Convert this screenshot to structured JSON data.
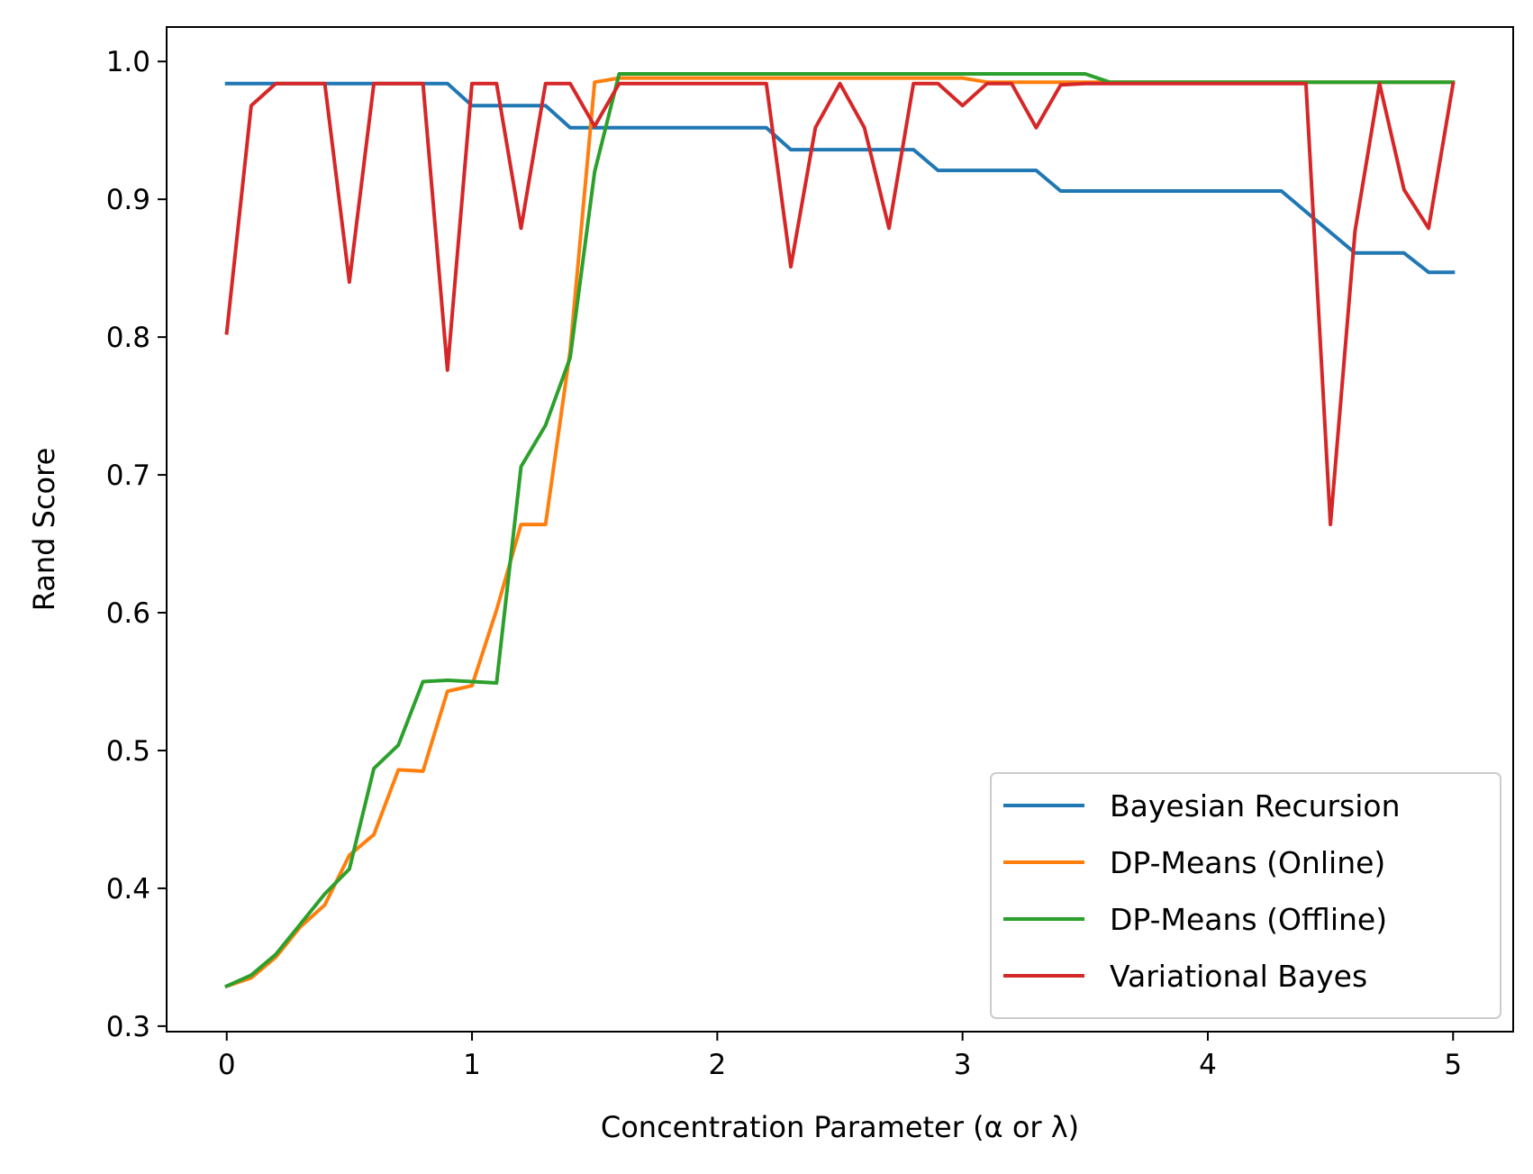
{
  "chart_data": {
    "type": "line",
    "xlabel": "Concentration Parameter (α or λ)",
    "ylabel": "Rand Score",
    "xlim": [
      -0.245,
      5.245
    ],
    "ylim": [
      0.296,
      1.025
    ],
    "xticks": [
      0,
      1,
      2,
      3,
      4,
      5
    ],
    "xtick_labels": [
      "0",
      "1",
      "2",
      "3",
      "4",
      "5"
    ],
    "yticks": [
      0.3,
      0.4,
      0.5,
      0.6,
      0.7,
      0.8,
      0.9,
      1.0
    ],
    "ytick_labels": [
      "0.3",
      "0.4",
      "0.5",
      "0.6",
      "0.7",
      "0.8",
      "0.9",
      "1.0"
    ],
    "grid": false,
    "legend_position": "lower-right",
    "x": [
      0.0,
      0.1,
      0.2,
      0.3,
      0.4,
      0.5,
      0.6,
      0.7,
      0.8,
      0.9,
      1.0,
      1.1,
      1.2,
      1.3,
      1.4,
      1.5,
      1.6,
      1.7,
      1.8,
      1.9,
      2.0,
      2.1,
      2.2,
      2.3,
      2.4,
      2.5,
      2.6,
      2.7,
      2.8,
      2.9,
      3.0,
      3.1,
      3.2,
      3.3,
      3.4,
      3.5,
      3.6,
      3.7,
      3.8,
      3.9,
      4.0,
      4.1,
      4.2,
      4.3,
      4.4,
      4.5,
      4.6,
      4.7,
      4.8,
      4.9,
      5.0
    ],
    "series": [
      {
        "name": "Bayesian Recursion",
        "color": "#1f77b4",
        "values": [
          0.984,
          0.984,
          0.984,
          0.984,
          0.984,
          0.984,
          0.984,
          0.984,
          0.984,
          0.984,
          0.968,
          0.968,
          0.968,
          0.968,
          0.952,
          0.952,
          0.952,
          0.952,
          0.952,
          0.952,
          0.952,
          0.952,
          0.952,
          0.936,
          0.936,
          0.936,
          0.936,
          0.936,
          0.936,
          0.921,
          0.921,
          0.921,
          0.921,
          0.921,
          0.906,
          0.906,
          0.906,
          0.906,
          0.906,
          0.906,
          0.906,
          0.906,
          0.906,
          0.906,
          0.891,
          0.876,
          0.861,
          0.861,
          0.861,
          0.847,
          0.847
        ]
      },
      {
        "name": "DP-Means (Online)",
        "color": "#ff7f0e",
        "values": [
          0.329,
          0.335,
          0.35,
          0.372,
          0.388,
          0.424,
          0.439,
          0.486,
          0.485,
          0.543,
          0.547,
          0.602,
          0.664,
          0.664,
          0.79,
          0.985,
          0.988,
          0.988,
          0.988,
          0.988,
          0.988,
          0.988,
          0.988,
          0.988,
          0.988,
          0.988,
          0.988,
          0.988,
          0.988,
          0.988,
          0.988,
          0.985,
          0.985,
          0.985,
          0.985,
          0.985,
          0.985,
          0.985,
          0.985,
          0.985,
          0.985,
          0.985,
          0.985,
          0.985,
          0.985,
          0.985,
          0.985,
          0.985,
          0.985,
          0.985,
          0.985
        ]
      },
      {
        "name": "DP-Means (Offline)",
        "color": "#2ca02c",
        "values": [
          0.329,
          0.337,
          0.352,
          0.374,
          0.396,
          0.414,
          0.487,
          0.504,
          0.55,
          0.551,
          0.55,
          0.549,
          0.706,
          0.736,
          0.785,
          0.92,
          0.991,
          0.991,
          0.991,
          0.991,
          0.991,
          0.991,
          0.991,
          0.991,
          0.991,
          0.991,
          0.991,
          0.991,
          0.991,
          0.991,
          0.991,
          0.991,
          0.991,
          0.991,
          0.991,
          0.991,
          0.985,
          0.985,
          0.985,
          0.985,
          0.985,
          0.985,
          0.985,
          0.985,
          0.985,
          0.985,
          0.985,
          0.985,
          0.985,
          0.985,
          0.985
        ]
      },
      {
        "name": "Variational Bayes",
        "color": "#d62728",
        "values": [
          0.803,
          0.968,
          0.984,
          0.984,
          0.984,
          0.84,
          0.984,
          0.984,
          0.984,
          0.776,
          0.984,
          0.984,
          0.879,
          0.984,
          0.984,
          0.953,
          0.984,
          0.984,
          0.984,
          0.984,
          0.984,
          0.984,
          0.984,
          0.851,
          0.952,
          0.984,
          0.952,
          0.879,
          0.984,
          0.984,
          0.968,
          0.984,
          0.984,
          0.952,
          0.983,
          0.984,
          0.984,
          0.984,
          0.984,
          0.984,
          0.984,
          0.984,
          0.984,
          0.984,
          0.984,
          0.664,
          0.877,
          0.984,
          0.907,
          0.879,
          0.984
        ]
      }
    ]
  }
}
